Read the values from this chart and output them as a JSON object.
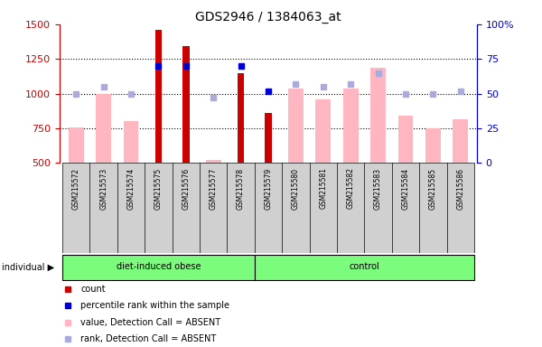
{
  "title": "GDS2946 / 1384063_at",
  "samples": [
    "GSM215572",
    "GSM215573",
    "GSM215574",
    "GSM215575",
    "GSM215576",
    "GSM215577",
    "GSM215578",
    "GSM215579",
    "GSM215580",
    "GSM215581",
    "GSM215582",
    "GSM215583",
    "GSM215584",
    "GSM215585",
    "GSM215586"
  ],
  "ylim_left": [
    500,
    1500
  ],
  "ylim_right": [
    0,
    100
  ],
  "yticks_left": [
    500,
    750,
    1000,
    1250,
    1500
  ],
  "yticks_right": [
    0,
    25,
    50,
    75,
    100
  ],
  "left_color": "#CC0000",
  "right_color": "#0000CC",
  "count_bars": {
    "GSM215575": 1460,
    "GSM215576": 1340,
    "GSM215578": 1150,
    "GSM215579": 860
  },
  "absent_value_bars": {
    "GSM215572": 760,
    "GSM215573": 1000,
    "GSM215574": 800,
    "GSM215577": 520,
    "GSM215580": 1040,
    "GSM215581": 960,
    "GSM215582": 1040,
    "GSM215583": 1185,
    "GSM215584": 840,
    "GSM215585": 750,
    "GSM215586": 815
  },
  "absent_rank_dots": {
    "GSM215572": 50,
    "GSM215573": 55,
    "GSM215574": 50,
    "GSM215577": 47,
    "GSM215580": 57,
    "GSM215581": 55,
    "GSM215582": 57,
    "GSM215583": 65,
    "GSM215584": 50,
    "GSM215585": 50,
    "GSM215586": 52
  },
  "count_rank_dots": {
    "GSM215575": 70,
    "GSM215576": 70,
    "GSM215578": 70,
    "GSM215579": 52
  },
  "group1_label": "diet-induced obese",
  "group1_indices": [
    0,
    1,
    2,
    3,
    4,
    5,
    6
  ],
  "group2_label": "control",
  "group2_indices": [
    7,
    8,
    9,
    10,
    11,
    12,
    13,
    14
  ],
  "legend_items": [
    {
      "label": "count",
      "color": "#CC0000"
    },
    {
      "label": "percentile rank within the sample",
      "color": "#0000CC"
    },
    {
      "label": "value, Detection Call = ABSENT",
      "color": "#FFB6C1"
    },
    {
      "label": "rank, Detection Call = ABSENT",
      "color": "#AAAADD"
    }
  ]
}
